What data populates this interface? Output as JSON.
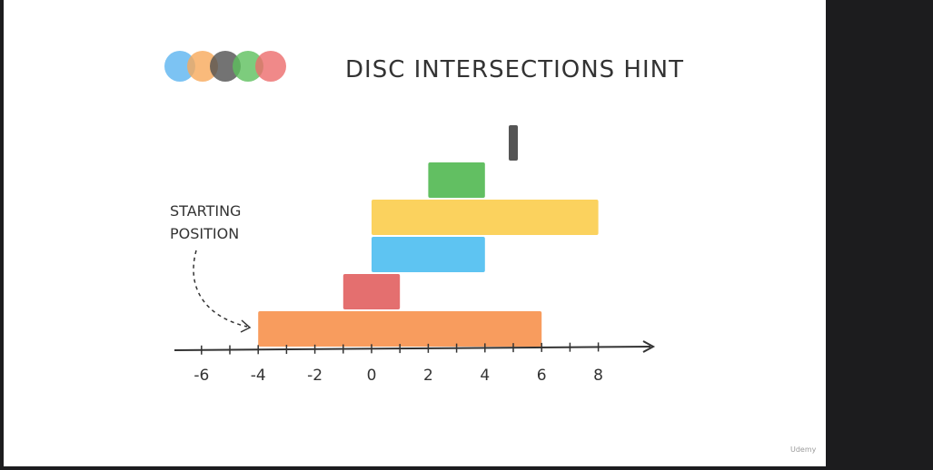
{
  "title": "DISC INTERSECTIONS HINT",
  "annotation": {
    "line1": "STARTING",
    "line2": "POSITION"
  },
  "logo_colors": [
    "#5bb4f0",
    "#f7a95a",
    "#505050",
    "#5cbf5c",
    "#ec6b6b"
  ],
  "axis": {
    "min": -6,
    "max": 8,
    "tick_labels": [
      "-6",
      "-4",
      "-2",
      "0",
      "2",
      "4",
      "6",
      "8"
    ]
  },
  "intervals": [
    {
      "start": -4,
      "end": 6,
      "color": "#f89c5e"
    },
    {
      "start": -1,
      "end": 1,
      "color": "#e46f6f"
    },
    {
      "start": 0,
      "end": 4,
      "color": "#5ec4f2"
    },
    {
      "start": 0,
      "end": 8,
      "color": "#fbd25e"
    },
    {
      "start": 2,
      "end": 4,
      "color": "#62bf62"
    },
    {
      "start": 5,
      "end": 5,
      "color": "#555555"
    }
  ],
  "watermark": "Udemy"
}
